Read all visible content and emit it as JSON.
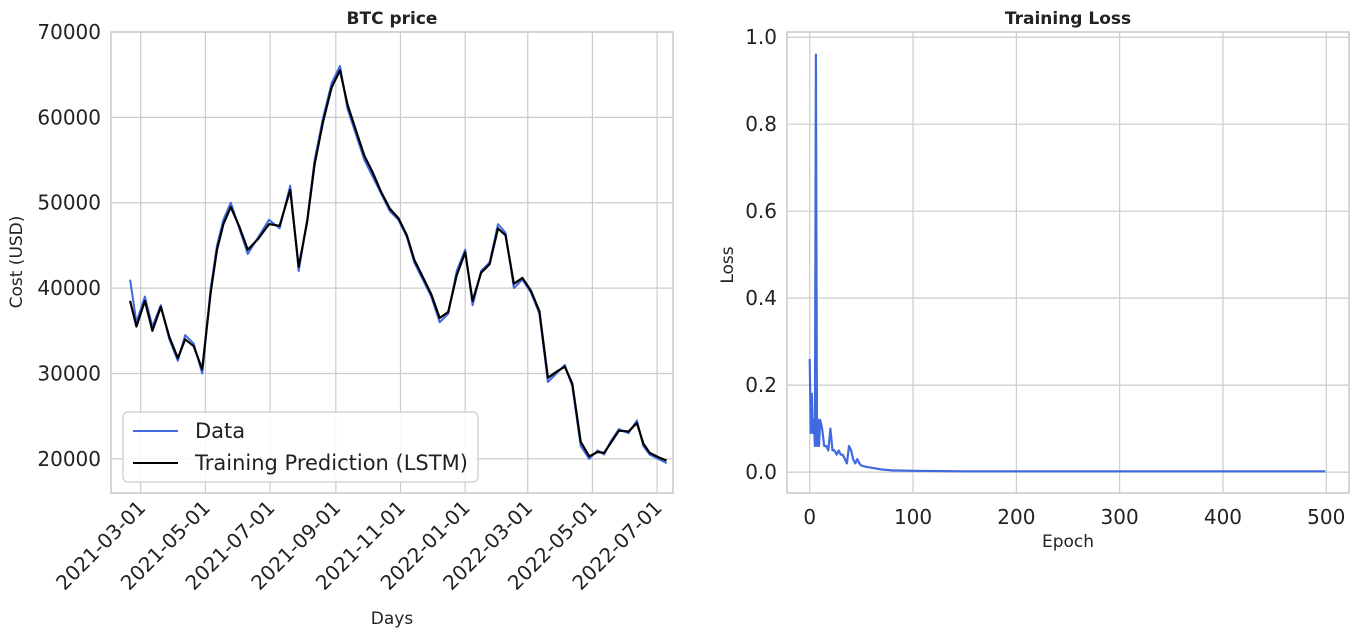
{
  "chart_data": [
    {
      "type": "line",
      "title": "BTC price",
      "xlabel": "Days",
      "ylabel": "Cost (USD)",
      "xlim": [
        "2021-02-01",
        "2022-07-16"
      ],
      "ylim": [
        16000,
        70000
      ],
      "xticks": [
        "2021-03-01",
        "2021-05-01",
        "2021-07-01",
        "2021-09-01",
        "2021-11-01",
        "2022-01-01",
        "2022-03-01",
        "2022-05-01",
        "2022-07-01"
      ],
      "yticks": [
        20000,
        30000,
        40000,
        50000,
        60000,
        70000
      ],
      "grid": true,
      "legend": "lower-left",
      "colors": {
        "Data": "#4169e1",
        "Training Prediction (LSTM)": "#000000"
      },
      "x": [
        "2021-02-19",
        "2021-02-25",
        "2021-03-05",
        "2021-03-12",
        "2021-03-20",
        "2021-03-28",
        "2021-04-05",
        "2021-04-12",
        "2021-04-20",
        "2021-04-28",
        "2021-05-06",
        "2021-05-12",
        "2021-05-18",
        "2021-05-25",
        "2021-06-02",
        "2021-06-10",
        "2021-06-20",
        "2021-06-30",
        "2021-07-10",
        "2021-07-20",
        "2021-07-28",
        "2021-08-05",
        "2021-08-12",
        "2021-08-20",
        "2021-08-28",
        "2021-09-05",
        "2021-09-12",
        "2021-09-20",
        "2021-09-28",
        "2021-10-06",
        "2021-10-14",
        "2021-10-22",
        "2021-10-30",
        "2021-11-07",
        "2021-11-14",
        "2021-11-22",
        "2021-11-30",
        "2021-12-08",
        "2021-12-16",
        "2021-12-24",
        "2022-01-01",
        "2022-01-08",
        "2022-01-16",
        "2022-01-24",
        "2022-02-01",
        "2022-02-08",
        "2022-02-16",
        "2022-02-24",
        "2022-03-04",
        "2022-03-12",
        "2022-03-20",
        "2022-03-28",
        "2022-04-05",
        "2022-04-12",
        "2022-04-20",
        "2022-04-28",
        "2022-05-06",
        "2022-05-12",
        "2022-05-18",
        "2022-05-26",
        "2022-06-04",
        "2022-06-12",
        "2022-06-18",
        "2022-06-24",
        "2022-07-02",
        "2022-07-10"
      ],
      "series": [
        {
          "name": "Data",
          "values": [
            41000,
            36000,
            39000,
            35500,
            38000,
            34000,
            31500,
            34500,
            33500,
            30000,
            40000,
            45000,
            48000,
            50000,
            47000,
            44000,
            46000,
            48000,
            47000,
            52000,
            42000,
            48000,
            55000,
            60000,
            64000,
            66000,
            61000,
            58000,
            55000,
            53000,
            51000,
            49000,
            48000,
            46000,
            43000,
            41000,
            39000,
            36000,
            37000,
            42000,
            44500,
            38000,
            42000,
            43000,
            47500,
            46500,
            40000,
            41000,
            39500,
            37000,
            29000,
            30000,
            31000,
            28500,
            21500,
            20000,
            21000,
            20500,
            22000,
            23500,
            23000,
            24500,
            21500,
            20500,
            20000,
            19500
          ]
        },
        {
          "name": "Training Prediction (LSTM)",
          "values": [
            38500,
            35500,
            38500,
            35000,
            37800,
            34300,
            31800,
            34000,
            33200,
            30500,
            39500,
            44500,
            47500,
            49500,
            47200,
            44500,
            45800,
            47500,
            47300,
            51500,
            42500,
            47800,
            54500,
            59500,
            63500,
            65500,
            61500,
            58500,
            55500,
            53500,
            51200,
            49300,
            48200,
            46200,
            43300,
            41300,
            39300,
            36500,
            37200,
            41500,
            44200,
            38500,
            41800,
            42800,
            47000,
            46200,
            40500,
            41200,
            39700,
            37300,
            29500,
            30200,
            30800,
            28800,
            22000,
            20300,
            20800,
            20700,
            21800,
            23300,
            23200,
            24200,
            21800,
            20700,
            20200,
            19800
          ]
        }
      ]
    },
    {
      "type": "line",
      "title": "Training Loss",
      "xlabel": "Epoch",
      "ylabel": "Loss",
      "xlim": [
        -22,
        522
      ],
      "ylim": [
        -0.048,
        1.012
      ],
      "xticks": [
        0,
        100,
        200,
        300,
        400,
        500
      ],
      "yticks": [
        0.0,
        0.2,
        0.4,
        0.6,
        0.8,
        1.0
      ],
      "grid": true,
      "colors": {
        "loss": "#4169e1"
      },
      "series": [
        {
          "x": [
            0,
            1,
            2,
            3,
            4,
            5,
            6,
            7,
            8,
            9,
            10,
            12,
            14,
            16,
            18,
            20,
            22,
            24,
            26,
            28,
            30,
            32,
            34,
            36,
            38,
            40,
            42,
            44,
            46,
            48,
            50,
            55,
            60,
            70,
            80,
            100,
            150,
            200,
            300,
            400,
            499
          ],
          "values": [
            0.26,
            0.09,
            0.18,
            0.09,
            0.12,
            0.06,
            0.96,
            0.06,
            0.12,
            0.06,
            0.12,
            0.1,
            0.06,
            0.06,
            0.05,
            0.1,
            0.05,
            0.05,
            0.04,
            0.05,
            0.04,
            0.04,
            0.03,
            0.02,
            0.06,
            0.05,
            0.03,
            0.02,
            0.03,
            0.02,
            0.015,
            0.012,
            0.01,
            0.006,
            0.004,
            0.003,
            0.002,
            0.002,
            0.002,
            0.002,
            0.002
          ]
        }
      ]
    }
  ]
}
